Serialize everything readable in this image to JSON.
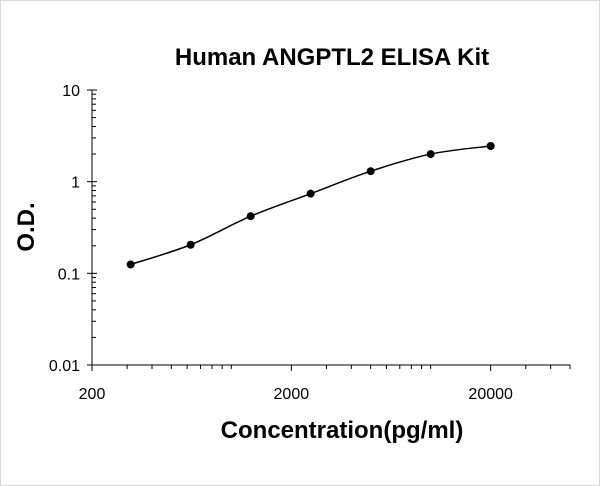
{
  "chart_data": {
    "type": "scatter",
    "title": "Human ANGPTL2 ELISA Kit",
    "xlabel": "Concentration(pg/ml)",
    "ylabel": "O.D.",
    "x_scale": "log",
    "y_scale": "log",
    "xlim": [
      200,
      50000
    ],
    "ylim": [
      0.01,
      10
    ],
    "x_ticks": [
      200,
      2000,
      20000
    ],
    "y_ticks": [
      0.01,
      0.1,
      1,
      10
    ],
    "x_tick_labels": [
      "200",
      "2000",
      "20000"
    ],
    "y_tick_labels": [
      "0.01",
      "0.1",
      "1",
      "10"
    ],
    "grid": false,
    "legend": "none",
    "series": [
      {
        "x": [
          312.5,
          625,
          1250,
          2500,
          5000,
          10000,
          20000
        ],
        "y": [
          0.125,
          0.205,
          0.42,
          0.74,
          1.3,
          2.0,
          2.45
        ],
        "markers": true,
        "smooth_line": true
      }
    ],
    "colors": {
      "line": "#000000",
      "marker": "#000000",
      "axis": "#000000"
    }
  }
}
